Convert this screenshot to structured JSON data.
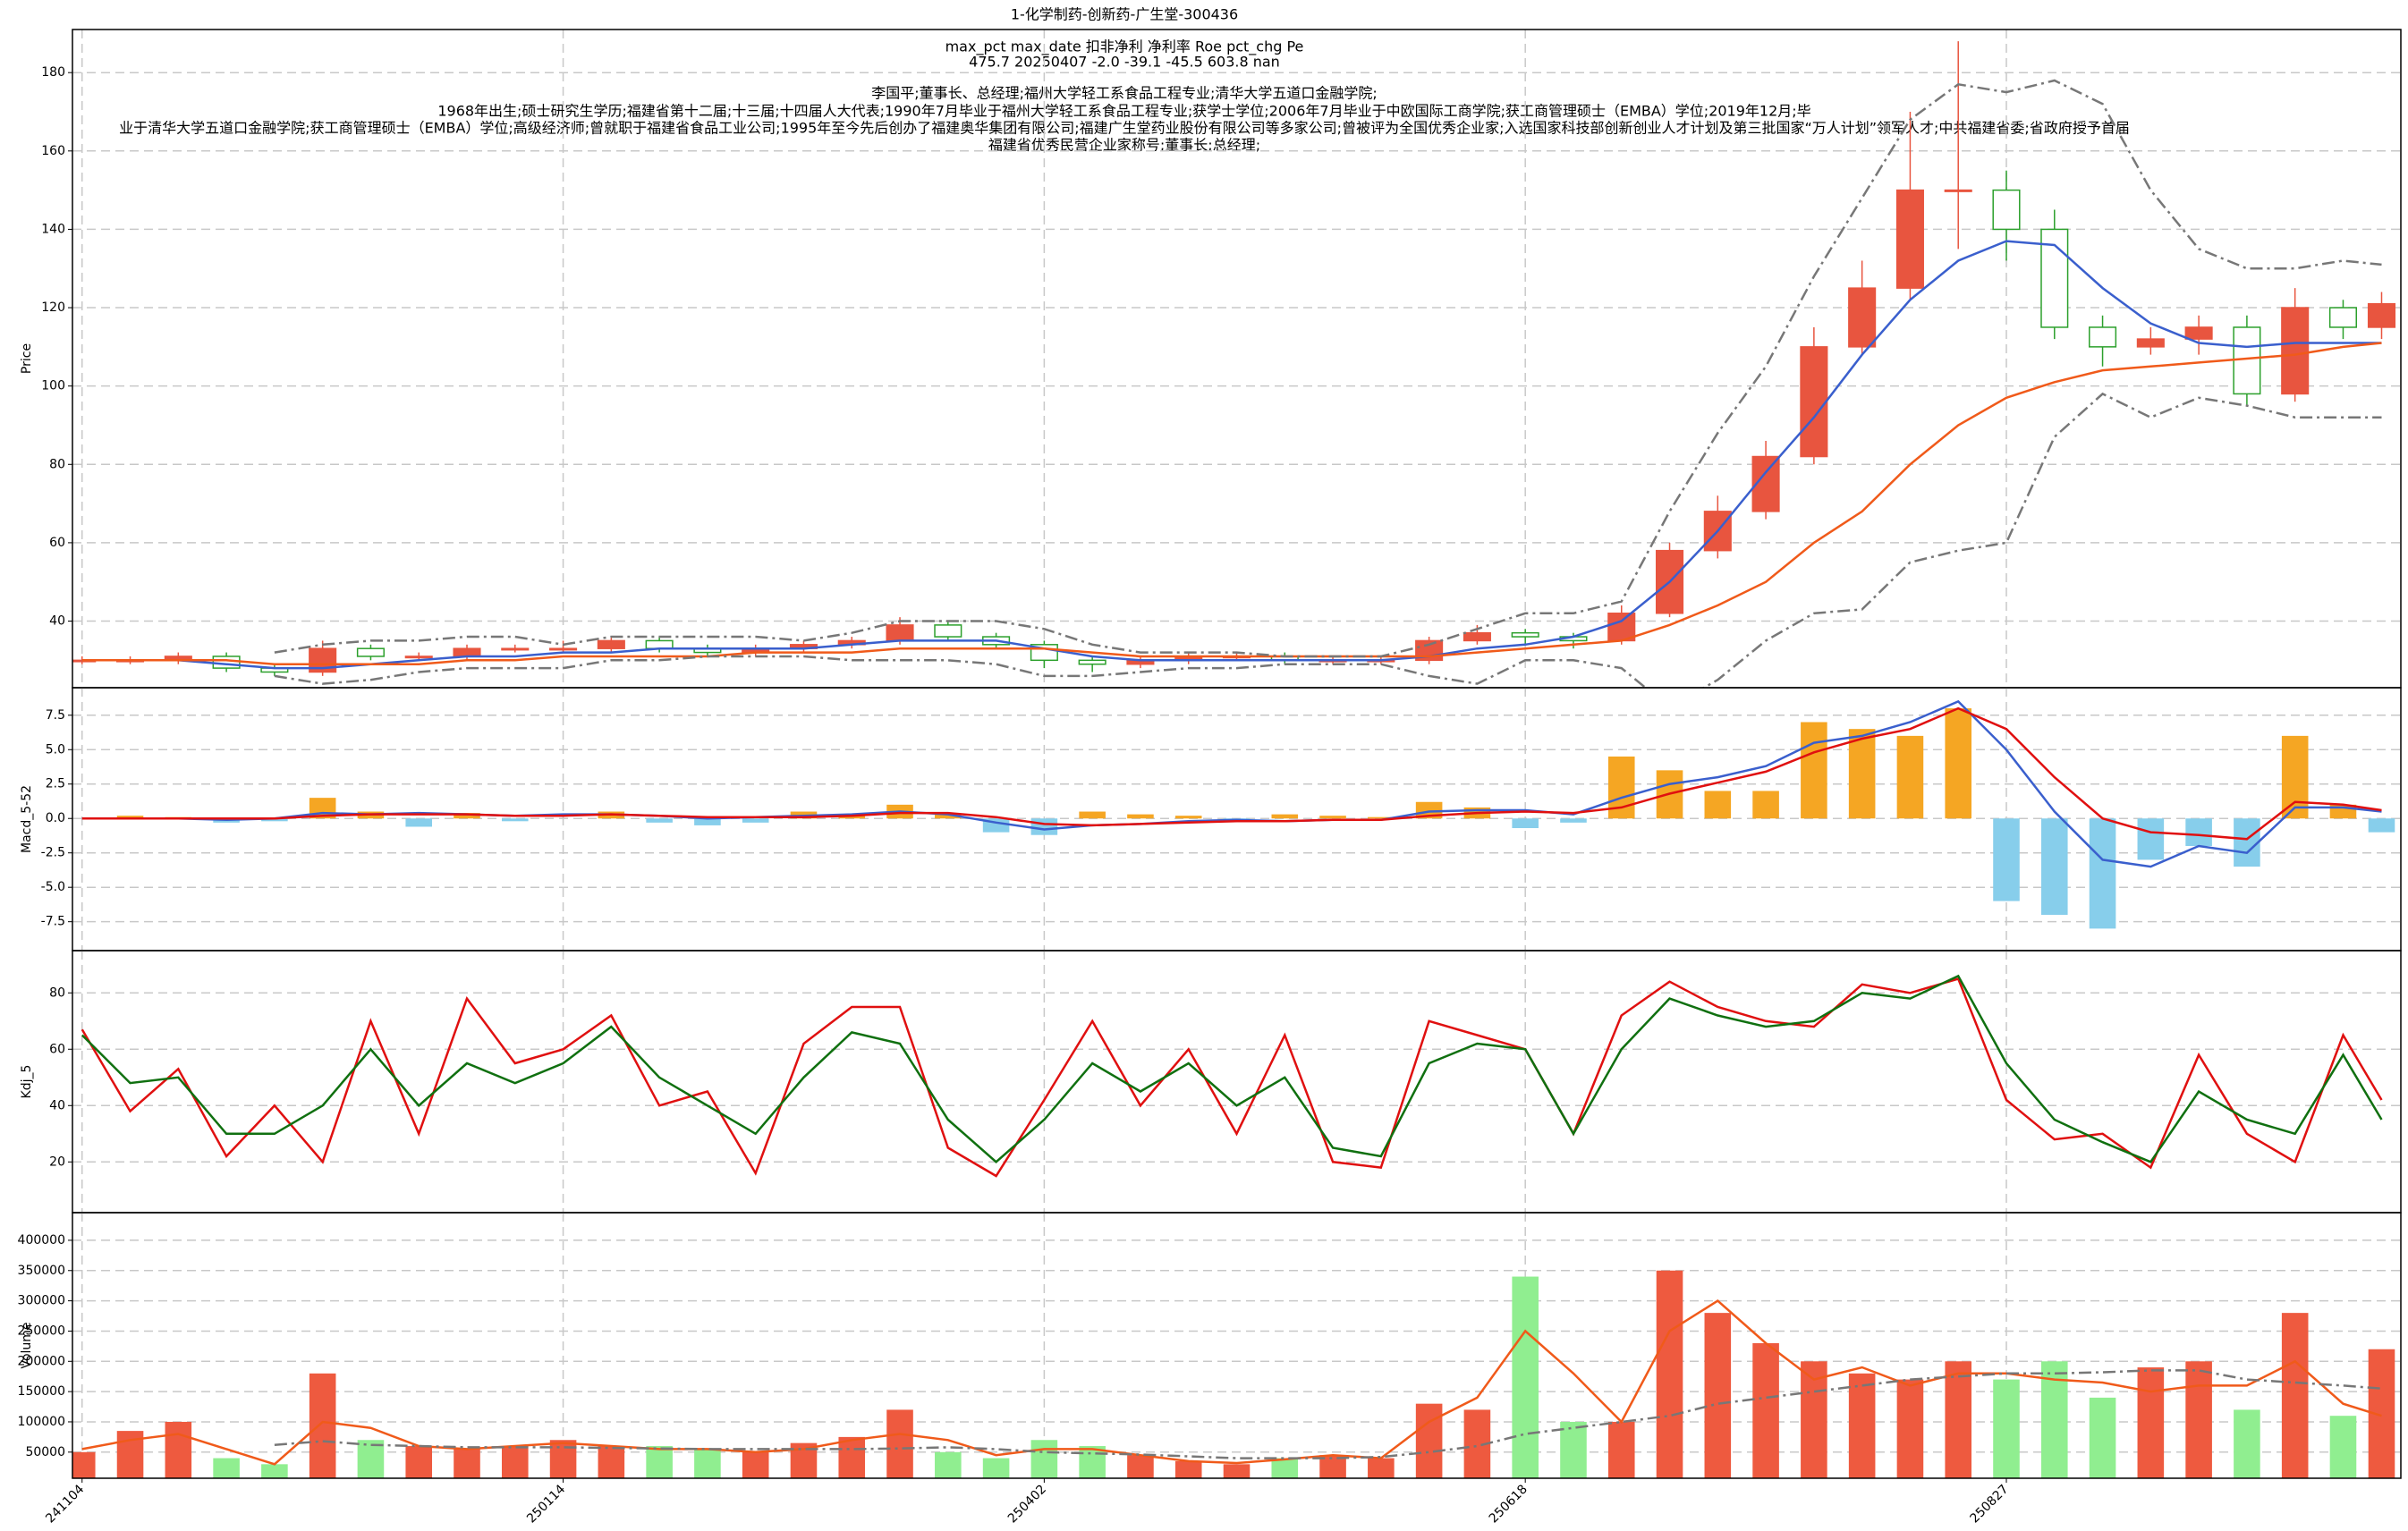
{
  "chart_data": [
    {
      "type": "candlestick",
      "title": "1-化学制药-创新药-广生堂-300436",
      "stats": [
        "max_pct  max_date  扣非净利  净利率  Roe  pct_chg  Pe",
        "475.7    20250407    -2.0    -39.1    -45.5    603.8    nan"
      ],
      "notes": [
        "李国平;董事长、总经理;福州大学轻工系食品工程专业;清华大学五道口金融学院;",
        "1968年出生;硕士研究生学历;福建省第十二届;十三届;十四届人大代表;1990年7月毕业于福州大学轻工系食品工程专业;获学士学位;2006年7月毕业于中欧国际工商学院;获工商管理硕士（EMBA）学位;2019年12月;毕",
        "业于清华大学五道口金融学院;获工商管理硕士（EMBA）学位;高级经济师;曾就职于福建省食品工业公司;1995年至今先后创办了福建奥华集团有限公司;福建广生堂药业股份有限公司等多家公司;曾被评为全国优秀企业家;入选国家科技部创新创业人才计划及第三批国家“万人计划”领军人才;中共福建省委;省政府授予首届",
        "福建省优秀民营企业家称号;董事长;总经理;"
      ],
      "ylabel": "Price",
      "x": [
        0,
        5,
        10,
        15,
        20,
        25,
        30,
        35,
        40,
        45,
        50,
        55,
        60,
        65,
        70,
        75,
        80,
        85,
        90,
        95,
        100,
        105,
        110,
        115,
        120,
        125,
        130,
        135,
        140,
        145,
        150,
        155,
        160,
        165,
        170,
        175,
        180,
        185,
        190,
        195,
        200,
        205,
        210,
        215,
        220,
        225,
        230,
        235,
        239
      ],
      "open": [
        30,
        30,
        30,
        31,
        28,
        27,
        33,
        31,
        31,
        33,
        33,
        33,
        35,
        33,
        32,
        33,
        34,
        35,
        39,
        36,
        34,
        30,
        29,
        30,
        31,
        31,
        30,
        30,
        30,
        35,
        37,
        36,
        35,
        42,
        58,
        68,
        82,
        110,
        125,
        150,
        150,
        140,
        115,
        110,
        112,
        115,
        98,
        120,
        115
      ],
      "high": [
        31,
        31,
        32,
        32,
        29,
        35,
        34,
        32,
        34,
        34,
        35,
        36,
        36,
        34,
        34,
        35,
        36,
        41,
        40,
        37,
        35,
        31,
        31,
        32,
        32,
        32,
        31,
        31,
        36,
        39,
        38,
        37,
        44,
        60,
        72,
        86,
        115,
        132,
        170,
        188,
        155,
        145,
        118,
        115,
        118,
        118,
        125,
        122,
        124
      ],
      "low": [
        29,
        29,
        29,
        27,
        26,
        26,
        30,
        30,
        30,
        32,
        32,
        32,
        32,
        31,
        31,
        32,
        33,
        34,
        35,
        33,
        28,
        27,
        28,
        29,
        30,
        29,
        29,
        29,
        29,
        34,
        34,
        33,
        34,
        41,
        56,
        66,
        80,
        108,
        122,
        135,
        132,
        112,
        105,
        108,
        108,
        95,
        96,
        112,
        112
      ],
      "close": [
        30,
        30,
        31,
        28,
        27,
        33,
        31,
        31,
        33,
        33,
        33,
        35,
        33,
        32,
        33,
        34,
        35,
        39,
        36,
        34,
        30,
        29,
        30,
        31,
        31,
        30,
        30,
        30,
        35,
        37,
        36,
        35,
        42,
        58,
        68,
        82,
        110,
        125,
        150,
        150,
        140,
        115,
        110,
        112,
        115,
        98,
        120,
        115,
        121
      ],
      "up_color": "#e8553f",
      "down_color": "#2ca02c",
      "series": [
        {
          "color": "#3a5fcd",
          "dashed": false,
          "values": [
            30,
            30,
            30,
            29,
            28,
            28,
            29,
            30,
            31,
            31,
            32,
            32,
            33,
            33,
            33,
            33,
            34,
            35,
            35,
            35,
            33,
            31,
            30,
            30,
            30,
            30,
            30,
            30,
            31,
            33,
            34,
            36,
            40,
            50,
            63,
            78,
            92,
            108,
            122,
            132,
            137,
            136,
            125,
            116,
            111,
            110,
            111,
            111,
            111
          ]
        },
        {
          "color": "#f05a1a",
          "dashed": false,
          "values": [
            30,
            30,
            30,
            30,
            29,
            29,
            29,
            29,
            30,
            30,
            31,
            31,
            31,
            31,
            32,
            32,
            32,
            33,
            33,
            33,
            33,
            32,
            31,
            31,
            31,
            31,
            31,
            31,
            31,
            32,
            33,
            34,
            35,
            39,
            44,
            50,
            60,
            68,
            80,
            90,
            97,
            101,
            104,
            105,
            106,
            107,
            108,
            110,
            111
          ]
        },
        {
          "color": "#777777",
          "dashed": true,
          "values": [
            null,
            null,
            null,
            null,
            32,
            34,
            35,
            35,
            36,
            36,
            34,
            36,
            36,
            36,
            36,
            35,
            37,
            40,
            40,
            40,
            38,
            34,
            32,
            32,
            32,
            31,
            31,
            31,
            34,
            38,
            42,
            42,
            45,
            68,
            88,
            105,
            128,
            148,
            168,
            177,
            175,
            178,
            172,
            150,
            135,
            130,
            130,
            132,
            131
          ]
        },
        {
          "color": "#777777",
          "dashed": true,
          "values": [
            null,
            null,
            null,
            null,
            26,
            24,
            25,
            27,
            28,
            28,
            28,
            30,
            30,
            31,
            31,
            31,
            30,
            30,
            30,
            29,
            26,
            26,
            27,
            28,
            28,
            29,
            29,
            29,
            26,
            24,
            30,
            30,
            28,
            18,
            25,
            35,
            42,
            43,
            55,
            58,
            60,
            87,
            98,
            92,
            97,
            95,
            92,
            92,
            92
          ]
        }
      ],
      "xlim": [
        -1,
        241
      ],
      "xticks": [
        0,
        50,
        100,
        150,
        200
      ],
      "ylim": [
        23,
        191
      ],
      "yticks": [
        40,
        60,
        80,
        100,
        120,
        140,
        160,
        180
      ]
    },
    {
      "type": "macd",
      "ylabel": "Macd_5-52",
      "x": [
        0,
        5,
        10,
        15,
        20,
        25,
        30,
        35,
        40,
        45,
        50,
        55,
        60,
        65,
        70,
        75,
        80,
        85,
        90,
        95,
        100,
        105,
        110,
        115,
        120,
        125,
        130,
        135,
        140,
        145,
        150,
        155,
        160,
        165,
        170,
        175,
        180,
        185,
        190,
        195,
        200,
        205,
        210,
        215,
        220,
        225,
        230,
        235,
        239
      ],
      "bars": {
        "pos_color": "#f5a623",
        "neg_color": "#87ceeb",
        "values": [
          0,
          0.2,
          0.1,
          -0.3,
          -0.2,
          1.5,
          0.5,
          -0.6,
          0.4,
          -0.2,
          0,
          0.5,
          -0.3,
          -0.5,
          -0.3,
          0.5,
          0.3,
          1,
          0.3,
          -1,
          -1.2,
          0.5,
          0.3,
          0.2,
          -0.2,
          0.3,
          0.2,
          0.1,
          1.2,
          0.8,
          -0.7,
          -0.3,
          4.5,
          3.5,
          2,
          2,
          7,
          6.5,
          6,
          8,
          -6,
          -7,
          -8,
          -3,
          -2,
          -3.5,
          6,
          1,
          -1
        ]
      },
      "series": [
        {
          "color": "#3a5fcd",
          "dashed": false,
          "values": [
            0,
            0,
            0,
            -0.1,
            0,
            0.4,
            0.3,
            0.4,
            0.3,
            0.2,
            0.3,
            0.3,
            0.2,
            0,
            0.1,
            0.2,
            0.3,
            0.5,
            0.3,
            -0.3,
            -0.8,
            -0.5,
            -0.4,
            -0.2,
            -0.1,
            -0.2,
            -0.1,
            -0.1,
            0.5,
            0.6,
            0.6,
            0.3,
            1.5,
            2.5,
            3,
            3.8,
            5.5,
            6,
            7,
            8.5,
            5,
            0.5,
            -3,
            -3.5,
            -2,
            -2.5,
            0.8,
            0.8,
            0.5
          ]
        },
        {
          "color": "#e01010",
          "dashed": false,
          "values": [
            0,
            0,
            0,
            0,
            0,
            0.2,
            0.3,
            0.3,
            0.3,
            0.2,
            0.2,
            0.3,
            0.2,
            0.1,
            0.1,
            0.1,
            0.2,
            0.4,
            0.4,
            0.1,
            -0.4,
            -0.5,
            -0.4,
            -0.3,
            -0.2,
            -0.2,
            -0.1,
            -0.1,
            0.2,
            0.4,
            0.5,
            0.4,
            0.8,
            1.8,
            2.6,
            3.4,
            4.8,
            5.8,
            6.5,
            8,
            6.5,
            3,
            0,
            -1,
            -1.2,
            -1.5,
            1.2,
            1,
            0.6
          ]
        }
      ],
      "xlim": [
        -1,
        241
      ],
      "xticks": [
        0,
        50,
        100,
        150,
        200
      ],
      "ylim": [
        -9.6,
        9.5
      ],
      "yticks": [
        7.5,
        {
          "value": 5,
          "label": "5.0"
        },
        2.5,
        {
          "value": 0,
          "label": "0.0"
        },
        -2.5,
        {
          "value": -5,
          "label": "-5.0"
        },
        -7.5
      ]
    },
    {
      "type": "line",
      "ylabel": "Kdj_5",
      "x": [
        0,
        5,
        10,
        15,
        20,
        25,
        30,
        35,
        40,
        45,
        50,
        55,
        60,
        65,
        70,
        75,
        80,
        85,
        90,
        95,
        100,
        105,
        110,
        115,
        120,
        125,
        130,
        135,
        140,
        145,
        150,
        155,
        160,
        165,
        170,
        175,
        180,
        185,
        190,
        195,
        200,
        205,
        210,
        215,
        220,
        225,
        230,
        235,
        239
      ],
      "series": [
        {
          "color": "#e01010",
          "dashed": false,
          "values": [
            67,
            38,
            53,
            22,
            40,
            20,
            70,
            30,
            78,
            55,
            60,
            72,
            40,
            45,
            16,
            62,
            75,
            75,
            25,
            15,
            42,
            70,
            40,
            60,
            30,
            65,
            20,
            18,
            70,
            65,
            60,
            30,
            72,
            84,
            75,
            70,
            68,
            83,
            80,
            85,
            42,
            28,
            30,
            18,
            58,
            30,
            20,
            65,
            42
          ]
        },
        {
          "color": "#107010",
          "dashed": false,
          "values": [
            65,
            48,
            50,
            30,
            30,
            40,
            60,
            40,
            55,
            48,
            55,
            68,
            50,
            40,
            30,
            50,
            66,
            62,
            35,
            20,
            35,
            55,
            45,
            55,
            40,
            50,
            25,
            22,
            55,
            62,
            60,
            30,
            60,
            78,
            72,
            68,
            70,
            80,
            78,
            86,
            55,
            35,
            27,
            20,
            45,
            35,
            30,
            58,
            35
          ]
        }
      ],
      "xlim": [
        -1,
        241
      ],
      "xticks": [
        0,
        50,
        100,
        150,
        200
      ],
      "ylim": [
        2,
        95
      ],
      "yticks": [
        20,
        40,
        60,
        80
      ]
    },
    {
      "type": "bar",
      "ylabel": "Volume",
      "x": [
        0,
        5,
        10,
        15,
        20,
        25,
        30,
        35,
        40,
        45,
        50,
        55,
        60,
        65,
        70,
        75,
        80,
        85,
        90,
        95,
        100,
        105,
        110,
        115,
        120,
        125,
        130,
        135,
        140,
        145,
        150,
        155,
        160,
        165,
        170,
        175,
        180,
        185,
        190,
        195,
        200,
        205,
        210,
        215,
        220,
        225,
        230,
        235,
        239
      ],
      "values": [
        50000,
        85000,
        100000,
        40000,
        30000,
        180000,
        70000,
        60000,
        55000,
        60000,
        70000,
        60000,
        60000,
        55000,
        50000,
        65000,
        75000,
        120000,
        50000,
        40000,
        70000,
        60000,
        45000,
        35000,
        30000,
        40000,
        45000,
        40000,
        130000,
        120000,
        340000,
        100000,
        100000,
        350000,
        280000,
        230000,
        200000,
        180000,
        170000,
        200000,
        170000,
        200000,
        140000,
        190000,
        200000,
        120000,
        280000,
        110000,
        220000
      ],
      "up_color": "#ee5a3f",
      "down_color": "#90ee90",
      "series": [
        {
          "color": "#f05a1a",
          "dashed": false,
          "values": [
            55000,
            70000,
            80000,
            55000,
            30000,
            100000,
            90000,
            60000,
            55000,
            60000,
            65000,
            60000,
            55000,
            55000,
            50000,
            55000,
            70000,
            80000,
            70000,
            45000,
            55000,
            55000,
            45000,
            35000,
            32000,
            38000,
            45000,
            40000,
            100000,
            140000,
            250000,
            180000,
            100000,
            250000,
            300000,
            230000,
            170000,
            190000,
            160000,
            180000,
            180000,
            170000,
            165000,
            150000,
            160000,
            160000,
            200000,
            130000,
            110000
          ]
        },
        {
          "color": "#777777",
          "dashed": true,
          "values": [
            null,
            null,
            null,
            null,
            62000,
            68000,
            62000,
            60000,
            58000,
            58000,
            58000,
            57000,
            56000,
            55000,
            55000,
            55000,
            55000,
            56000,
            58000,
            55000,
            50000,
            48000,
            46000,
            43000,
            40000,
            40000,
            40000,
            42000,
            50000,
            60000,
            80000,
            90000,
            100000,
            110000,
            130000,
            140000,
            150000,
            160000,
            170000,
            175000,
            180000,
            180000,
            182000,
            185000,
            185000,
            170000,
            165000,
            160000,
            155000
          ]
        }
      ],
      "xlim": [
        -1,
        241
      ],
      "xticks": [
        {
          "value": 0,
          "label": "241104"
        },
        {
          "value": 50,
          "label": "250114"
        },
        {
          "value": 100,
          "label": "250402"
        },
        {
          "value": 150,
          "label": "250618"
        },
        {
          "value": 200,
          "label": "250827"
        }
      ],
      "ylim": [
        6850,
        445700
      ],
      "yticks": [
        50000,
        100000,
        150000,
        200000,
        250000,
        300000,
        350000,
        400000
      ]
    }
  ]
}
